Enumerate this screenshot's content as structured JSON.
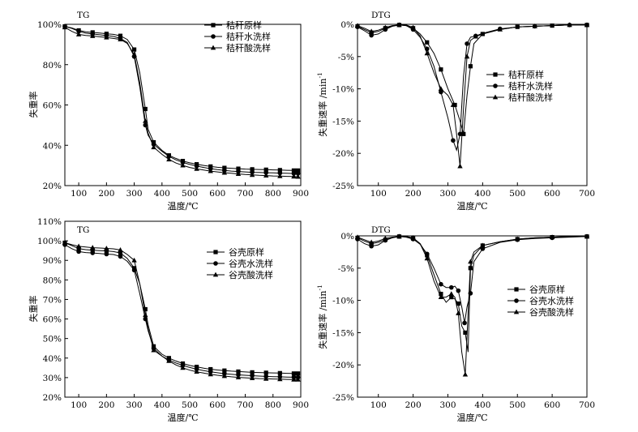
{
  "chart_data": [
    {
      "type": "line",
      "title": "TG",
      "xlabel": "温度/℃",
      "ylabel": "失重率",
      "xlim": [
        50,
        900
      ],
      "ylim": [
        20,
        100
      ],
      "xticks": [
        100,
        200,
        300,
        400,
        500,
        600,
        700,
        800,
        900
      ],
      "yticks": [
        20,
        40,
        60,
        80,
        100
      ],
      "ytick_suffix": "%",
      "legend": "top-right",
      "series": [
        {
          "name": "秸秆原样",
          "marker": "square",
          "x": [
            50,
            75,
            100,
            125,
            150,
            175,
            200,
            225,
            250,
            275,
            300,
            320,
            340,
            350,
            370,
            400,
            425,
            450,
            475,
            500,
            525,
            550,
            575,
            600,
            625,
            650,
            675,
            700,
            725,
            750,
            775,
            800,
            825,
            850,
            875,
            890
          ],
          "y": [
            99,
            98.2,
            97,
            96.3,
            96,
            95.7,
            95.3,
            95,
            94.3,
            92.5,
            87.5,
            76,
            58,
            48,
            41.5,
            37.5,
            35,
            33.5,
            32.2,
            31.3,
            30.6,
            30,
            29.5,
            29.1,
            28.8,
            28.6,
            28.4,
            28.2,
            28.1,
            28,
            27.9,
            27.8,
            27.7,
            27.6,
            27.5,
            27.5
          ]
        },
        {
          "name": "秸秆水洗样",
          "marker": "circle",
          "x": [
            50,
            75,
            100,
            125,
            150,
            175,
            200,
            225,
            250,
            275,
            300,
            320,
            340,
            350,
            370,
            400,
            425,
            450,
            475,
            500,
            525,
            550,
            575,
            600,
            625,
            650,
            675,
            700,
            725,
            750,
            775,
            800,
            825,
            850,
            875,
            890
          ],
          "y": [
            99,
            98,
            96.5,
            95.6,
            95.2,
            94.8,
            94.4,
            94,
            93,
            91,
            84,
            69,
            50,
            45,
            40.5,
            37,
            34.5,
            32.8,
            31.5,
            30.5,
            29.7,
            29,
            28.4,
            27.9,
            27.5,
            27.2,
            27,
            26.8,
            26.6,
            26.5,
            26.4,
            26.3,
            26.2,
            26.1,
            26,
            26
          ]
        },
        {
          "name": "秸秆酸洗样",
          "marker": "triangle",
          "x": [
            50,
            75,
            100,
            125,
            150,
            175,
            200,
            225,
            250,
            275,
            300,
            320,
            340,
            350,
            370,
            400,
            425,
            450,
            475,
            500,
            525,
            550,
            575,
            600,
            625,
            650,
            675,
            700,
            725,
            750,
            775,
            800,
            825,
            850,
            875,
            890
          ],
          "y": [
            98.5,
            96.5,
            95,
            94.5,
            94.2,
            93.8,
            93.5,
            93,
            92.5,
            90.5,
            85,
            71,
            52,
            46,
            39,
            35.5,
            33,
            31.2,
            30,
            29,
            28.3,
            27.7,
            27.2,
            26.8,
            26.4,
            26.1,
            25.8,
            25.5,
            25.3,
            25.1,
            25,
            24.8,
            24.7,
            24.6,
            24.5,
            24.4
          ]
        }
      ]
    },
    {
      "type": "line",
      "title": "DTG",
      "xlabel": "温度/℃",
      "ylabel": "失重速率 /min",
      "ylabel_sup": "-1",
      "xlim": [
        40,
        700
      ],
      "ylim": [
        -25,
        0
      ],
      "xticks": [
        100,
        200,
        300,
        400,
        500,
        600,
        700
      ],
      "yticks": [
        -25,
        -20,
        -15,
        -10,
        -5,
        0
      ],
      "ytick_suffix": "%",
      "legend": "middle-right",
      "series": [
        {
          "name": "秸秆原样",
          "marker": "square",
          "x": [
            40,
            60,
            80,
            100,
            120,
            140,
            160,
            180,
            200,
            220,
            240,
            260,
            280,
            300,
            320,
            335,
            345,
            355,
            365,
            375,
            400,
            450,
            500,
            550,
            600,
            650,
            700
          ],
          "y": [
            -0.3,
            -0.8,
            -1.3,
            -1.1,
            -0.6,
            -0.3,
            -0.1,
            -0.2,
            -0.6,
            -1.5,
            -2.8,
            -4.5,
            -7,
            -10,
            -12.5,
            -15,
            -17,
            -11,
            -6.5,
            -3,
            -1.5,
            -0.8,
            -0.4,
            -0.3,
            -0.2,
            -0.1,
            -0.1
          ]
        },
        {
          "name": "秸秆水洗样",
          "marker": "circle",
          "x": [
            40,
            60,
            80,
            100,
            120,
            140,
            160,
            180,
            200,
            220,
            240,
            260,
            280,
            300,
            315,
            325,
            335,
            345,
            355,
            365,
            380,
            400,
            450,
            500,
            550,
            600,
            650,
            700
          ],
          "y": [
            -0.4,
            -1,
            -1.7,
            -1.5,
            -0.8,
            -0.3,
            -0.1,
            -0.2,
            -0.8,
            -2,
            -3.8,
            -6.5,
            -10.5,
            -14.5,
            -18,
            -19.5,
            -17,
            -8,
            -3,
            -2,
            -1.8,
            -1.4,
            -0.7,
            -0.4,
            -0.3,
            -0.2,
            -0.1,
            -0.1
          ]
        },
        {
          "name": "秸秆酸洗样",
          "marker": "triangle",
          "x": [
            40,
            60,
            80,
            100,
            120,
            140,
            160,
            180,
            200,
            220,
            240,
            260,
            280,
            300,
            315,
            325,
            335,
            345,
            355,
            365,
            380,
            400,
            450,
            500,
            550,
            600,
            650,
            700
          ],
          "y": [
            -0.2,
            -0.6,
            -1.1,
            -0.9,
            -0.5,
            -0.2,
            -0.1,
            -0.1,
            -0.5,
            -1.8,
            -4.5,
            -7.5,
            -10,
            -11,
            -12.5,
            -17,
            -22,
            -13,
            -5,
            -2.5,
            -1.9,
            -1.5,
            -0.8,
            -0.4,
            -0.3,
            -0.2,
            -0.1,
            -0.1
          ]
        }
      ]
    },
    {
      "type": "line",
      "title": "TG",
      "xlabel": "温度/℃",
      "ylabel": "失重率",
      "xlim": [
        50,
        900
      ],
      "ylim": [
        20,
        110
      ],
      "xticks": [
        100,
        200,
        300,
        400,
        500,
        600,
        700,
        800,
        900
      ],
      "yticks": [
        20,
        30,
        40,
        50,
        60,
        70,
        80,
        90,
        100,
        110
      ],
      "ytick_suffix": "%",
      "legend": "top-right",
      "series": [
        {
          "name": "谷壳原样",
          "marker": "square",
          "x": [
            50,
            75,
            100,
            125,
            150,
            175,
            200,
            225,
            250,
            275,
            300,
            320,
            340,
            350,
            370,
            400,
            425,
            450,
            475,
            500,
            525,
            550,
            575,
            600,
            625,
            650,
            675,
            700,
            725,
            750,
            775,
            800,
            825,
            850,
            875,
            890
          ],
          "y": [
            99,
            97.5,
            96,
            95.5,
            95.2,
            95,
            94.8,
            94.5,
            93.8,
            91,
            86,
            78,
            65,
            57,
            46,
            42,
            40,
            38.5,
            37.2,
            36.2,
            35.5,
            34.8,
            34.3,
            33.9,
            33.6,
            33.3,
            33.1,
            32.9,
            32.7,
            32.6,
            32.5,
            32.4,
            32.3,
            32.2,
            32.1,
            32.1
          ]
        },
        {
          "name": "谷壳水洗样",
          "marker": "circle",
          "x": [
            50,
            75,
            100,
            125,
            150,
            175,
            200,
            225,
            250,
            275,
            300,
            320,
            340,
            350,
            370,
            400,
            425,
            450,
            475,
            500,
            525,
            550,
            575,
            600,
            625,
            650,
            675,
            700,
            725,
            750,
            775,
            800,
            825,
            850,
            875,
            890
          ],
          "y": [
            98,
            96,
            94.5,
            94,
            93.8,
            93.5,
            93.2,
            93,
            92,
            89.5,
            85,
            73,
            60,
            54,
            45,
            41,
            39,
            37.5,
            36.2,
            35.2,
            34.3,
            33.6,
            33,
            32.5,
            32,
            31.7,
            31.4,
            31.2,
            31,
            30.8,
            30.6,
            30.5,
            30.4,
            30.3,
            30.2,
            30.1
          ]
        },
        {
          "name": "谷壳酸洗样",
          "marker": "triangle",
          "x": [
            50,
            75,
            100,
            125,
            150,
            175,
            200,
            225,
            250,
            275,
            300,
            320,
            340,
            350,
            370,
            400,
            425,
            450,
            475,
            500,
            525,
            550,
            575,
            600,
            625,
            650,
            675,
            700,
            725,
            750,
            775,
            800,
            825,
            850,
            875,
            890
          ],
          "y": [
            99,
            98,
            97.2,
            96.8,
            96.5,
            96.3,
            96.1,
            95.9,
            95.3,
            93,
            90,
            78,
            62,
            55,
            44,
            41,
            38.5,
            36.5,
            35,
            33.8,
            33,
            32.3,
            31.7,
            31.2,
            30.8,
            30.4,
            30.1,
            29.9,
            29.7,
            29.5,
            29.4,
            29.3,
            29.2,
            29.1,
            29,
            29
          ]
        }
      ]
    },
    {
      "type": "line",
      "title": "DTG",
      "xlabel": "温度/℃",
      "ylabel": "失重速率 /min",
      "ylabel_sup": "-1",
      "xlim": [
        40,
        700
      ],
      "ylim": [
        -25,
        0
      ],
      "xticks": [
        100,
        200,
        300,
        400,
        500,
        600,
        700
      ],
      "yticks": [
        -25,
        -20,
        -15,
        -10,
        -5,
        0
      ],
      "ytick_suffix": "%",
      "legend": "middle-right",
      "series": [
        {
          "name": "谷壳原样",
          "marker": "square",
          "x": [
            40,
            60,
            80,
            100,
            120,
            140,
            160,
            180,
            200,
            220,
            240,
            260,
            280,
            295,
            310,
            320,
            330,
            340,
            350,
            358,
            365,
            375,
            400,
            450,
            500,
            550,
            600,
            650,
            700
          ],
          "y": [
            -0.3,
            -0.8,
            -1.2,
            -1,
            -0.6,
            -0.3,
            -0.1,
            -0.1,
            -0.4,
            -1.2,
            -3,
            -6,
            -9,
            -10.3,
            -9.5,
            -9.8,
            -10.5,
            -14,
            -15,
            -18,
            -5,
            -3,
            -1.5,
            -0.9,
            -0.5,
            -0.3,
            -0.2,
            -0.1,
            -0.1
          ]
        },
        {
          "name": "谷壳水洗样",
          "marker": "circle",
          "x": [
            40,
            60,
            80,
            100,
            120,
            140,
            160,
            180,
            200,
            220,
            240,
            260,
            280,
            295,
            310,
            320,
            330,
            340,
            348,
            355,
            365,
            375,
            400,
            450,
            500,
            550,
            600,
            650,
            700
          ],
          "y": [
            -0.5,
            -1.2,
            -1.6,
            -1.4,
            -0.7,
            -0.3,
            -0.1,
            -0.2,
            -0.5,
            -1.3,
            -2.8,
            -5,
            -7.5,
            -8,
            -8,
            -7.8,
            -8.5,
            -11,
            -13.5,
            -11,
            -8.9,
            -4,
            -2,
            -1,
            -0.6,
            -0.4,
            -0.3,
            -0.2,
            -0.1
          ]
        },
        {
          "name": "谷壳酸洗样",
          "marker": "triangle",
          "x": [
            40,
            60,
            80,
            100,
            120,
            140,
            160,
            180,
            200,
            220,
            240,
            260,
            280,
            295,
            310,
            320,
            330,
            340,
            350,
            358,
            365,
            375,
            400,
            450,
            500,
            550,
            600,
            650,
            700
          ],
          "y": [
            -0.2,
            -0.6,
            -1,
            -0.8,
            -0.4,
            -0.2,
            -0.1,
            -0.1,
            -0.3,
            -1.2,
            -3.5,
            -7,
            -9.5,
            -9.5,
            -9,
            -9.5,
            -12,
            -18,
            -21.5,
            -12,
            -4,
            -2.5,
            -1.5,
            -0.9,
            -0.5,
            -0.3,
            -0.2,
            -0.1,
            -0.1
          ]
        }
      ]
    }
  ]
}
